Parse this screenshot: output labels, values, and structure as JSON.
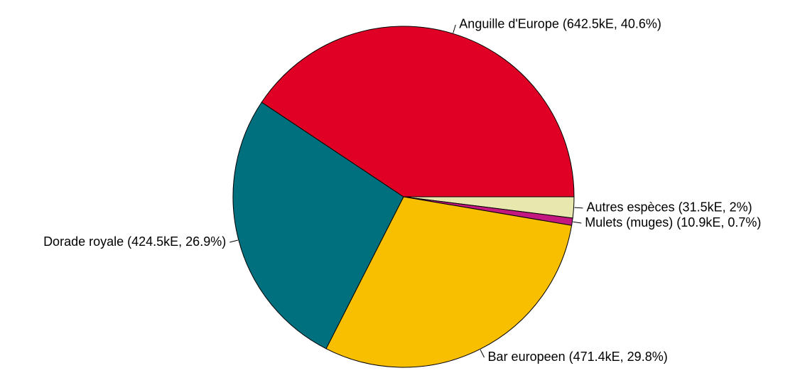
{
  "chart_data": {
    "type": "pie",
    "start": "3 o'clock",
    "direction": "clockwise",
    "slices": [
      {
        "name": "Autres espèces",
        "value": 31.5,
        "unit": "kE",
        "percent": 2,
        "label": "Autres espèces (31.5kE, 2%)",
        "color": "#e8e8ae"
      },
      {
        "name": "Mulets (muges)",
        "value": 10.9,
        "unit": "kE",
        "percent": 0.7,
        "label": "Mulets (muges) (10.9kE, 0.7%)",
        "color": "#c2187f"
      },
      {
        "name": "Bar europeen",
        "value": 471.4,
        "unit": "kE",
        "percent": 29.8,
        "label": "Bar europeen (471.4kE, 29.8%)",
        "color": "#f8bf00"
      },
      {
        "name": "Dorade royale",
        "value": 424.5,
        "unit": "kE",
        "percent": 26.9,
        "label": "Dorade royale (424.5kE, 26.9%)",
        "color": "#00707e"
      },
      {
        "name": "Anguille d'Europe",
        "value": 642.5,
        "unit": "kE",
        "percent": 40.6,
        "label": "Anguille d'Europe (642.5kE, 40.6%)",
        "color": "#e00026"
      }
    ]
  }
}
